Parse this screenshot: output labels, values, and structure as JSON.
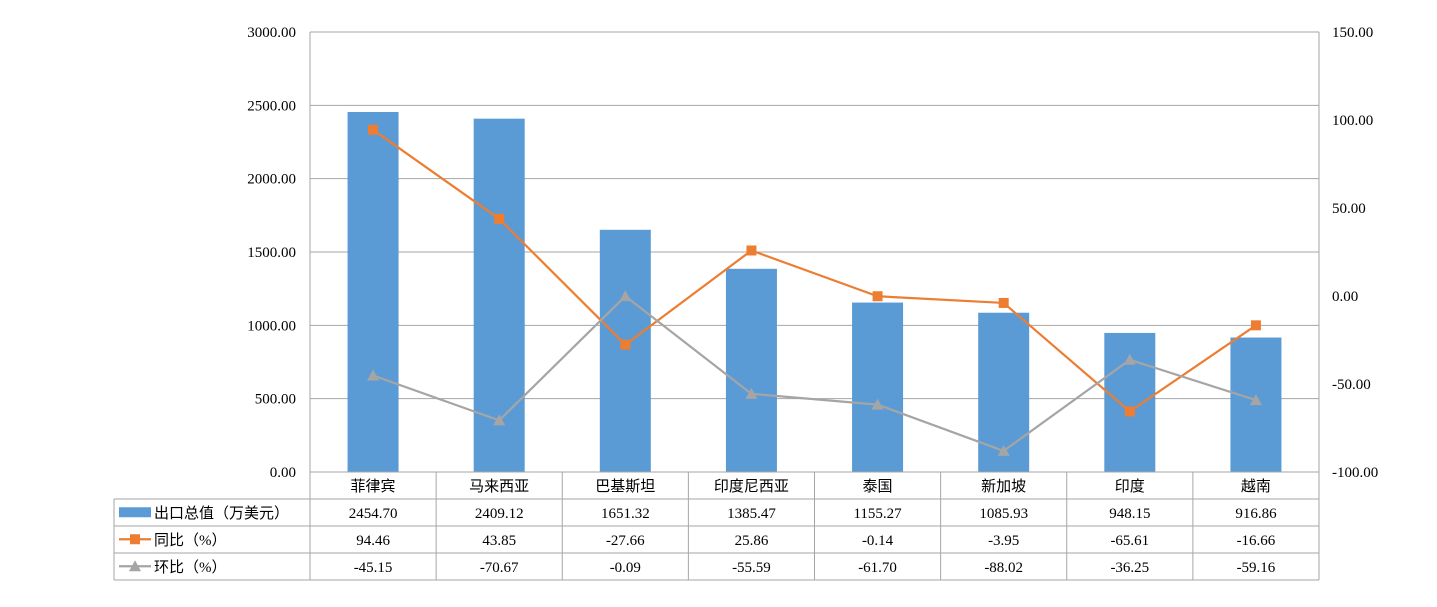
{
  "chart_data": {
    "type": "bar",
    "categories": [
      "菲律宾",
      "马来西亚",
      "巴基斯坦",
      "印度尼西亚",
      "泰国",
      "新加坡",
      "印度",
      "越南"
    ],
    "series": [
      {
        "name": "出口总值（万美元）",
        "type": "bar",
        "axis": "left",
        "color": "#5b9bd5",
        "values": [
          2454.7,
          2409.12,
          1651.32,
          1385.47,
          1155.27,
          1085.93,
          948.15,
          916.86
        ],
        "labels": [
          "2454.70",
          "2409.12",
          "1651.32",
          "1385.47",
          "1155.27",
          "1085.93",
          "948.15",
          "916.86"
        ]
      },
      {
        "name": "同比（%）",
        "type": "line",
        "axis": "right",
        "marker": "square",
        "color": "#ed7d31",
        "values": [
          94.46,
          43.85,
          -27.66,
          25.86,
          -0.14,
          -3.95,
          -65.61,
          -16.66
        ],
        "labels": [
          "94.46",
          "43.85",
          "-27.66",
          "25.86",
          "-0.14",
          "-3.95",
          "-65.61",
          "-16.66"
        ]
      },
      {
        "name": "环比（%）",
        "type": "line",
        "axis": "right",
        "marker": "triangle",
        "color": "#a5a5a5",
        "values": [
          -45.15,
          -70.67,
          -0.09,
          -55.59,
          -61.7,
          -88.02,
          -36.25,
          -59.16
        ],
        "labels": [
          "-45.15",
          "-70.67",
          "-0.09",
          "-55.59",
          "-61.70",
          "-88.02",
          "-36.25",
          "-59.16"
        ]
      }
    ],
    "y_left": {
      "range": [
        0,
        3000
      ],
      "ticks": [
        0,
        500,
        1000,
        1500,
        2000,
        2500,
        3000
      ],
      "tick_labels": [
        "0.00",
        "500.00",
        "1000.00",
        "1500.00",
        "2000.00",
        "2500.00",
        "3000.00"
      ]
    },
    "y_right": {
      "range": [
        -100,
        150
      ],
      "ticks": [
        -100,
        -50,
        0,
        50,
        100,
        150
      ],
      "tick_labels": [
        "-100.00",
        "-50.00",
        "0.00",
        "50.00",
        "100.00",
        "150.00"
      ]
    },
    "grid": true,
    "legend": "data table below chart"
  }
}
